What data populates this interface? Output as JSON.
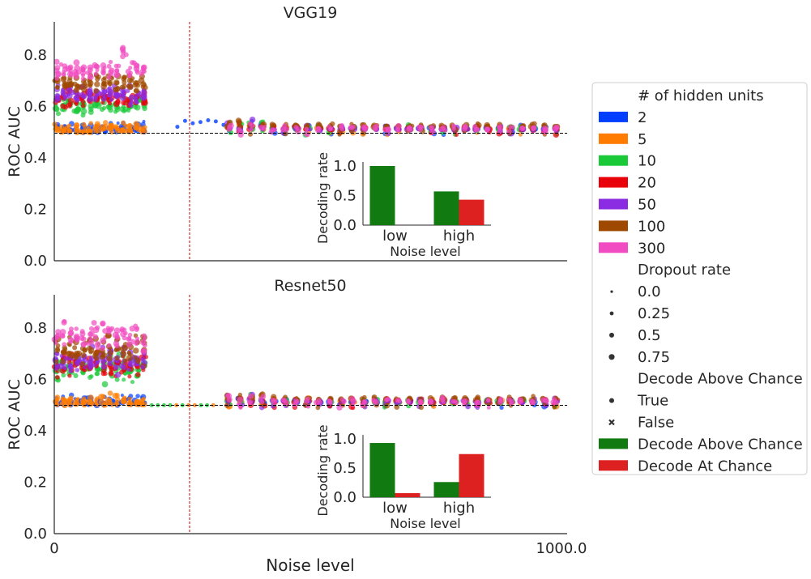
{
  "figure": {
    "xlabel": "Noise level",
    "x_ticks": [
      "0",
      "1000.0"
    ]
  },
  "colors": {
    "hidden_units": {
      "2": "#023eff",
      "5": "#ff7c00",
      "10": "#1ac938",
      "20": "#e8000b",
      "50": "#8b2be2",
      "100": "#9f4800",
      "300": "#f14cc1"
    },
    "decode_above": "#117a11",
    "decode_at": "#dd2020",
    "chance_line": "#000000",
    "threshold_line": "#cc0000"
  },
  "legend": {
    "hidden_units_title": "# of hidden units",
    "hidden_units": [
      "2",
      "5",
      "10",
      "20",
      "50",
      "100",
      "300"
    ],
    "dropout_title": "Dropout rate",
    "dropout": [
      "0.0",
      "0.25",
      "0.5",
      "0.75"
    ],
    "decode_title": "Decode Above Chance",
    "decode_markers": [
      "True",
      "False"
    ],
    "decode_patches": [
      "Decode Above Chance",
      "Decode At Chance"
    ]
  },
  "chart_data": [
    {
      "type": "scatter",
      "title": "VGG19",
      "ylabel": "ROC AUC",
      "yticks": [
        "0.0",
        "0.2",
        "0.4",
        "0.6",
        "0.8"
      ],
      "ylim": [
        0,
        0.93
      ],
      "chance_level": 0.5,
      "noise_levels_approx": [
        0,
        1000
      ],
      "series_summary": "ROC AUC strip clusters per noise level for hidden units 2-300; low-noise AUC 0.5-0.89, high-noise AUC ~0.48-0.60",
      "inset": {
        "type": "bar",
        "xlabel": "Noise level",
        "ylabel": "Decoding rate",
        "categories": [
          "low",
          "high"
        ],
        "yticks": [
          "0.0",
          "0.5",
          "1.0"
        ],
        "series": [
          {
            "name": "Decode Above Chance",
            "values": [
              1.0,
              0.57
            ]
          },
          {
            "name": "Decode At Chance",
            "values": [
              0.0,
              0.43
            ]
          }
        ]
      }
    },
    {
      "type": "scatter",
      "title": "Resnet50",
      "ylabel": "ROC AUC",
      "yticks": [
        "0.0",
        "0.2",
        "0.4",
        "0.6",
        "0.8"
      ],
      "ylim": [
        0,
        0.93
      ],
      "chance_level": 0.5,
      "noise_levels_approx": [
        0,
        1000
      ],
      "series_summary": "ROC AUC strip clusters per noise level for hidden units 2-300; low-noise AUC 0.48-0.91, high-noise AUC ~0.48-0.61",
      "inset": {
        "type": "bar",
        "xlabel": "Noise level",
        "ylabel": "Decoding rate",
        "categories": [
          "low",
          "high"
        ],
        "yticks": [
          "0.0",
          "0.5",
          "1.0"
        ],
        "series": [
          {
            "name": "Decode Above Chance",
            "values": [
              0.93,
              0.26
            ]
          },
          {
            "name": "Decode At Chance",
            "values": [
              0.07,
              0.74
            ]
          }
        ]
      }
    }
  ]
}
